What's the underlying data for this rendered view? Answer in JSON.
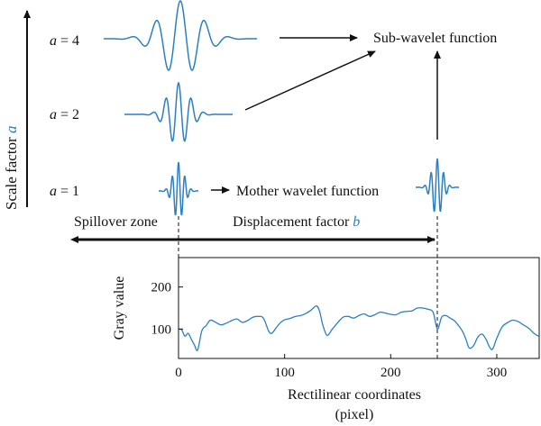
{
  "scale_axis": {
    "label": "Scale factor",
    "symbol": "a"
  },
  "scales": [
    {
      "label": "a = 4",
      "var": "a",
      "value": "4"
    },
    {
      "label": "a = 2",
      "var": "a",
      "value": "2"
    },
    {
      "label": "a = 1",
      "var": "a",
      "value": "1"
    }
  ],
  "labels": {
    "sub_wavelet": "Sub-wavelet function",
    "mother_wavelet": "Mother wavelet function",
    "spillover": "Spillover zone",
    "displacement": "Displacement factor",
    "displacement_symbol": "b"
  },
  "colors": {
    "wavelet": "#2b7fc4",
    "accent_symbol": "#2b7fc4",
    "ink": "#111111"
  },
  "chart_data": {
    "type": "line",
    "title": "",
    "xlabel_line1": "Rectilinear coordinates",
    "xlabel_line2": "(pixel)",
    "ylabel": "Gray value",
    "xlim": [
      0,
      340
    ],
    "ylim": [
      30,
      270
    ],
    "xticks": [
      0,
      100,
      200,
      300
    ],
    "yticks": [
      100,
      200
    ],
    "grid": false,
    "series": [
      {
        "x": [
          0,
          3,
          6,
          9,
          12,
          15,
          18,
          22,
          26,
          30,
          35,
          40,
          45,
          50,
          55,
          60,
          65,
          70,
          75,
          80,
          85,
          88,
          92,
          96,
          100,
          105,
          110,
          115,
          120,
          125,
          130,
          133,
          136,
          140,
          145,
          150,
          155,
          160,
          165,
          170,
          175,
          180,
          185,
          190,
          195,
          200,
          205,
          210,
          215,
          220,
          225,
          230,
          235,
          240,
          244,
          248,
          252,
          256,
          260,
          264,
          268,
          271,
          274,
          278,
          282,
          286,
          290,
          293,
          296,
          300,
          305,
          310,
          315,
          320,
          325,
          330,
          335,
          340
        ],
        "y": [
          100,
          98,
          83,
          90,
          76,
          62,
          50,
          96,
          108,
          121,
          116,
          110,
          114,
          120,
          124,
          116,
          120,
          128,
          130,
          126,
          95,
          90,
          103,
          115,
          122,
          125,
          130,
          132,
          137,
          145,
          155,
          142,
          110,
          85,
          100,
          115,
          128,
          130,
          126,
          132,
          136,
          130,
          134,
          140,
          138,
          135,
          134,
          140,
          142,
          143,
          150,
          150,
          147,
          140,
          100,
          128,
          132,
          126,
          120,
          108,
          93,
          75,
          55,
          60,
          80,
          88,
          75,
          58,
          52,
          78,
          105,
          115,
          121,
          118,
          110,
          102,
          90,
          82
        ]
      }
    ]
  }
}
